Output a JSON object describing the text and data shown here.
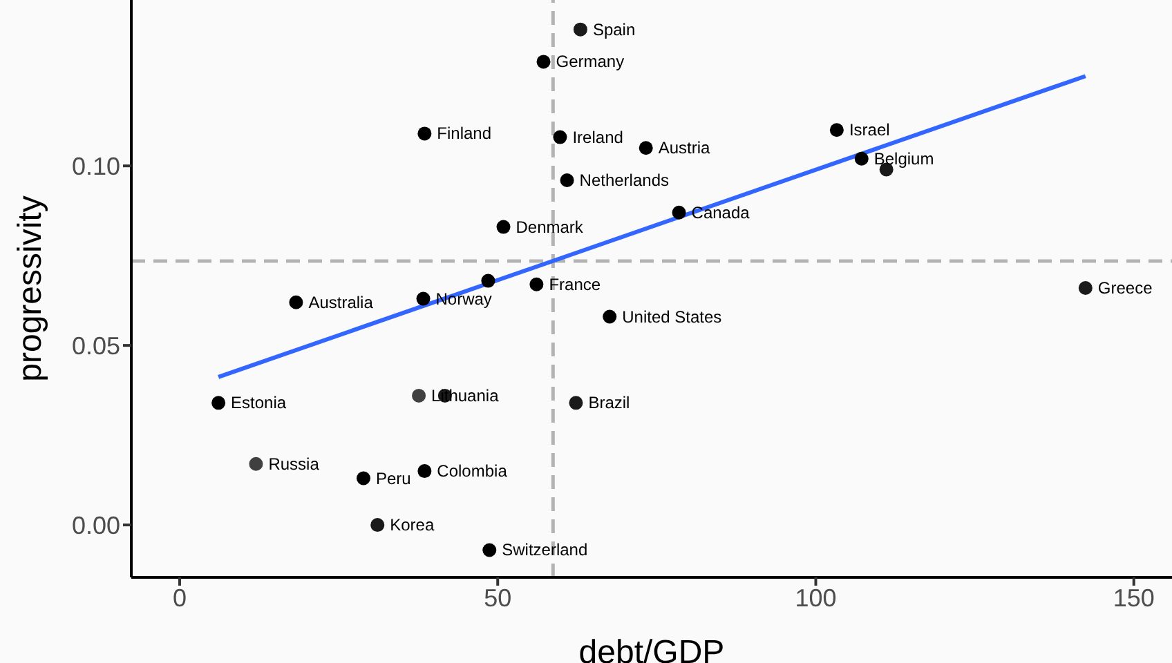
{
  "chart_data": {
    "type": "scatter",
    "xlabel": "debt/GDP",
    "ylabel": "progressivity",
    "xlim": [
      -7.6,
      156
    ],
    "ylim": [
      -0.0146,
      0.1462
    ],
    "xticks": [
      0,
      50,
      100,
      150
    ],
    "yticks": [
      {
        "value": 0,
        "label": "0.00"
      },
      {
        "value": 0.05,
        "label": "0.05"
      },
      {
        "value": 0.1,
        "label": "0.10"
      }
    ],
    "grid": false,
    "marker": "circle",
    "series": [
      {
        "x": [
          63.0,
          57.2,
          38.5,
          59.8,
          73.3,
          60.9,
          103.3,
          107.2,
          111.1,
          78.5,
          50.9,
          48.5,
          56.1,
          18.3,
          38.3,
          67.6,
          142.4,
          6.1,
          37.6,
          41.7,
          62.3,
          12.0,
          28.9,
          38.5,
          31.1,
          48.7
        ],
        "values": [
          0.138,
          0.129,
          0.109,
          0.108,
          0.105,
          0.096,
          0.11,
          0.102,
          0.099,
          0.087,
          0.083,
          0.068,
          0.067,
          0.062,
          0.063,
          0.058,
          0.066,
          0.034,
          0.036,
          0.036,
          0.034,
          0.017,
          0.013,
          0.015,
          0.0,
          -0.007
        ],
        "colors": [
          "#1a1a1a",
          "#000000",
          "#000000",
          "#000000",
          "#000000",
          "#000000",
          "#000000",
          "#000000",
          "#1a1a1a",
          "#000000",
          "#000000",
          "#000000",
          "#000000",
          "#000000",
          "#000000",
          "#000000",
          "#1a1a1a",
          "#000000",
          "#404040",
          "#1a1a1a",
          "#1a1a1a",
          "#404040",
          "#000000",
          "#000000",
          "#1a1a1a",
          "#000000"
        ]
      },
      {
        "type": "line",
        "x": [
          6.1,
          142.4
        ],
        "values": [
          0.0412,
          0.125
        ],
        "color": "#3366ff",
        "marker": "none"
      }
    ],
    "ref_lines": [
      {
        "axis": "x",
        "value": 58.7,
        "color": "#b3b3b3",
        "line_style": "dashed"
      },
      {
        "axis": "y",
        "value": 0.0735,
        "color": "#b3b3b3",
        "line_style": "dashed"
      }
    ],
    "annotations": [
      {
        "text": "Spain",
        "x": 63.0,
        "y": 0.138
      },
      {
        "text": "Germany",
        "x": 57.2,
        "y": 0.129
      },
      {
        "text": "Finland",
        "x": 38.5,
        "y": 0.109
      },
      {
        "text": "Ireland",
        "x": 59.8,
        "y": 0.108
      },
      {
        "text": "Austria",
        "x": 73.3,
        "y": 0.105
      },
      {
        "text": "Netherlands",
        "x": 60.9,
        "y": 0.096
      },
      {
        "text": "Israel",
        "x": 103.3,
        "y": 0.11
      },
      {
        "text": "Belgium",
        "x": 107.2,
        "y": 0.102
      },
      {
        "text": "Canada",
        "x": 78.5,
        "y": 0.087
      },
      {
        "text": "Denmark",
        "x": 50.9,
        "y": 0.083
      },
      {
        "text": "France",
        "x": 56.1,
        "y": 0.067
      },
      {
        "text": "Australia",
        "x": 18.3,
        "y": 0.062
      },
      {
        "text": "Norway",
        "x": 38.3,
        "y": 0.063
      },
      {
        "text": "United States",
        "x": 67.6,
        "y": 0.058
      },
      {
        "text": "Greece",
        "x": 142.4,
        "y": 0.066
      },
      {
        "text": "Estonia",
        "x": 6.1,
        "y": 0.034
      },
      {
        "text": "Lithuania",
        "x": 37.6,
        "y": 0.036
      },
      {
        "text": "Brazil",
        "x": 62.3,
        "y": 0.034
      },
      {
        "text": "Russia",
        "x": 12.0,
        "y": 0.017
      },
      {
        "text": "Peru",
        "x": 28.9,
        "y": 0.013
      },
      {
        "text": "Colombia",
        "x": 38.5,
        "y": 0.015
      },
      {
        "text": "Korea",
        "x": 31.1,
        "y": 0.0
      },
      {
        "text": "Switzerland",
        "x": 48.7,
        "y": -0.007
      }
    ]
  }
}
